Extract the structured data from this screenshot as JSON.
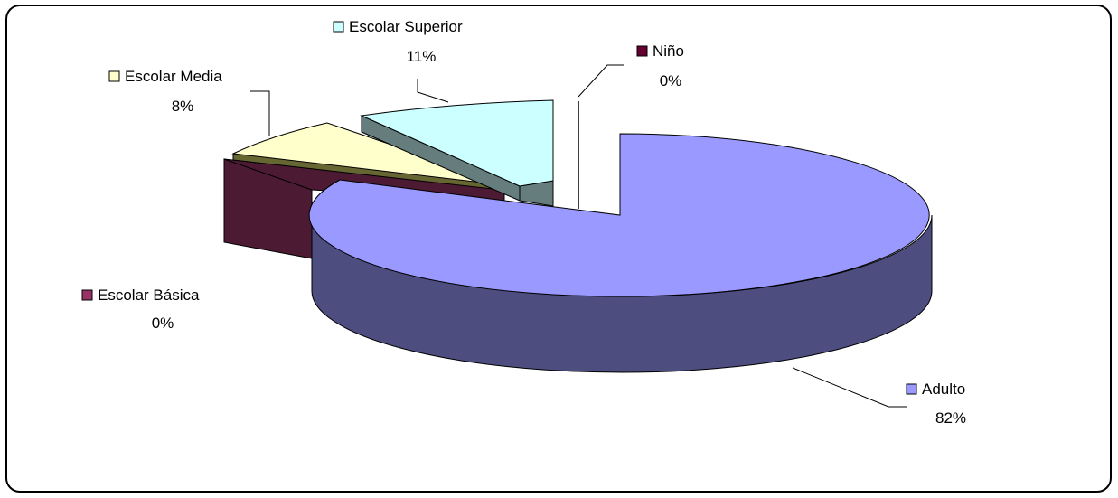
{
  "chart_data": {
    "type": "pie",
    "title": "",
    "legend_placement": "labels-on-slices",
    "slices": [
      {
        "label": "Niño",
        "value": 0,
        "display": "0%",
        "color": "#660033"
      },
      {
        "label": "Adulto",
        "value": 82,
        "display": "82%",
        "color": "#9999FF"
      },
      {
        "label": "Escolar Básica",
        "value": 0,
        "display": "0%",
        "color": "#4D1A33"
      },
      {
        "label": "Escolar Media",
        "value": 8,
        "display": "8%",
        "color": "#FFFFCC"
      },
      {
        "label": "Escolar Superior",
        "value": 11,
        "display": "11%",
        "color": "#CCFFFF"
      }
    ]
  }
}
